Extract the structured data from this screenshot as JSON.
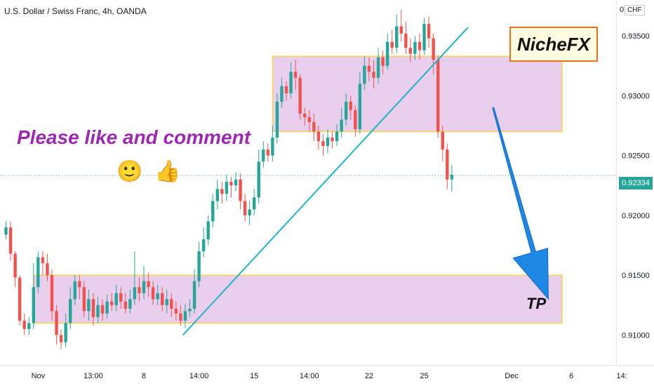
{
  "header": {
    "symbol_title": "U.S. Dollar / Swiss Franc, 4h, OANDA",
    "currency_badge": "CHF"
  },
  "annotations": {
    "brand_label": "NicheFX",
    "promo_text": "Please like and comment",
    "emoji_smile": "🙂",
    "emoji_thumb": "👍",
    "target_label": "TP"
  },
  "current_price": {
    "label": "0.92334",
    "value": 0.92334
  },
  "colors": {
    "bull": "#26a69a",
    "bear": "#ef5350",
    "zone_fill": "#e1bee7",
    "zone_border": "#f9d54a",
    "trendline": "#1fb3c8",
    "arrow": "#1e88e5",
    "price_line": "#26a69a"
  },
  "chart_data": {
    "type": "candlestick",
    "title": "U.S. Dollar / Swiss Franc, 4h, OANDA",
    "y_axis": {
      "ticks": [
        "0.93500",
        "0.93000",
        "0.92500",
        "0.92000",
        "0.91500",
        "0.91000"
      ],
      "tick_values": [
        0.935,
        0.93,
        0.925,
        0.92,
        0.915,
        0.91
      ],
      "range": [
        0.9075,
        0.938
      ]
    },
    "x_axis": {
      "ticks": [
        "Nov",
        "13:00",
        "8",
        "14:00",
        "15",
        "14:00",
        "22",
        "25",
        "Dec",
        "6",
        "14:"
      ],
      "tick_index": [
        7,
        19,
        30,
        42,
        54,
        66,
        79,
        91,
        110,
        123,
        134
      ],
      "range": [
        0,
        136
      ]
    },
    "zones": [
      {
        "name": "resistance",
        "y_top": 0.9333,
        "y_bottom": 0.927,
        "x_from": 58,
        "x_to": 121
      },
      {
        "name": "support",
        "y_top": 0.915,
        "y_bottom": 0.911,
        "x_from": 6,
        "x_to": 121
      }
    ],
    "trendline": {
      "from": {
        "x": 38.5,
        "y": 0.91
      },
      "to": {
        "x": 100.5,
        "y": 0.9357
      }
    },
    "arrow": {
      "from": {
        "x": 106,
        "y": 0.929
      },
      "to": {
        "x": 118,
        "y": 0.913
      }
    },
    "candles": [
      [
        0.9184,
        0.919,
        0.9195,
        0.918
      ],
      [
        0.919,
        0.9168,
        0.9195,
        0.9162
      ],
      [
        0.9168,
        0.9148,
        0.917,
        0.914
      ],
      [
        0.9148,
        0.9112,
        0.915,
        0.9108
      ],
      [
        0.9112,
        0.9105,
        0.9118,
        0.91
      ],
      [
        0.9105,
        0.911,
        0.9115,
        0.91
      ],
      [
        0.911,
        0.914,
        0.916,
        0.9105
      ],
      [
        0.914,
        0.9165,
        0.917,
        0.9135
      ],
      [
        0.9165,
        0.916,
        0.917,
        0.915
      ],
      [
        0.916,
        0.915,
        0.9168,
        0.9145
      ],
      [
        0.915,
        0.912,
        0.9155,
        0.9112
      ],
      [
        0.912,
        0.91,
        0.9125,
        0.9092
      ],
      [
        0.91,
        0.9094,
        0.9105,
        0.9088
      ],
      [
        0.9094,
        0.911,
        0.9118,
        0.909
      ],
      [
        0.911,
        0.913,
        0.914,
        0.9105
      ],
      [
        0.913,
        0.9145,
        0.915,
        0.9125
      ],
      [
        0.9145,
        0.914,
        0.915,
        0.913
      ],
      [
        0.914,
        0.912,
        0.9145,
        0.9115
      ],
      [
        0.912,
        0.913,
        0.9138,
        0.9112
      ],
      [
        0.913,
        0.9115,
        0.9135,
        0.9108
      ],
      [
        0.9115,
        0.9125,
        0.9132,
        0.911
      ],
      [
        0.9125,
        0.9118,
        0.913,
        0.9112
      ],
      [
        0.9118,
        0.9128,
        0.9134,
        0.9114
      ],
      [
        0.9128,
        0.9125,
        0.9135,
        0.912
      ],
      [
        0.9125,
        0.9135,
        0.9142,
        0.912
      ],
      [
        0.9135,
        0.9128,
        0.914,
        0.9122
      ],
      [
        0.9128,
        0.9122,
        0.9135,
        0.9118
      ],
      [
        0.9122,
        0.913,
        0.9138,
        0.9118
      ],
      [
        0.913,
        0.914,
        0.917,
        0.9125
      ],
      [
        0.914,
        0.9135,
        0.9148,
        0.9128
      ],
      [
        0.9135,
        0.9145,
        0.9158,
        0.913
      ],
      [
        0.9145,
        0.914,
        0.9152,
        0.9132
      ],
      [
        0.914,
        0.913,
        0.9145,
        0.9125
      ],
      [
        0.913,
        0.9135,
        0.9142,
        0.9125
      ],
      [
        0.9135,
        0.9125,
        0.914,
        0.912
      ],
      [
        0.9125,
        0.913,
        0.9138,
        0.9118
      ],
      [
        0.913,
        0.9122,
        0.9135,
        0.9115
      ],
      [
        0.9122,
        0.9118,
        0.9128,
        0.9112
      ],
      [
        0.9118,
        0.9112,
        0.9125,
        0.9108
      ],
      [
        0.9112,
        0.912,
        0.9126,
        0.9106
      ],
      [
        0.912,
        0.9122,
        0.913,
        0.9115
      ],
      [
        0.9122,
        0.9145,
        0.9155,
        0.9118
      ],
      [
        0.9145,
        0.917,
        0.9178,
        0.914
      ],
      [
        0.917,
        0.918,
        0.919,
        0.9165
      ],
      [
        0.918,
        0.9195,
        0.92,
        0.9175
      ],
      [
        0.9195,
        0.9212,
        0.9218,
        0.919
      ],
      [
        0.9212,
        0.9222,
        0.923,
        0.9205
      ],
      [
        0.9222,
        0.9218,
        0.9228,
        0.921
      ],
      [
        0.9218,
        0.9228,
        0.9234,
        0.9212
      ],
      [
        0.9228,
        0.9225,
        0.9232,
        0.9215
      ],
      [
        0.9225,
        0.923,
        0.9236,
        0.922
      ],
      [
        0.923,
        0.9212,
        0.9235,
        0.9205
      ],
      [
        0.9212,
        0.92,
        0.9218,
        0.9195
      ],
      [
        0.92,
        0.9205,
        0.9212,
        0.9192
      ],
      [
        0.9205,
        0.9215,
        0.9222,
        0.92
      ],
      [
        0.9215,
        0.9245,
        0.9255,
        0.921
      ],
      [
        0.9245,
        0.9255,
        0.9262,
        0.924
      ],
      [
        0.9255,
        0.925,
        0.926,
        0.9245
      ],
      [
        0.925,
        0.9265,
        0.9275,
        0.9245
      ],
      [
        0.9265,
        0.9295,
        0.9302,
        0.926
      ],
      [
        0.9295,
        0.9308,
        0.9315,
        0.929
      ],
      [
        0.9308,
        0.9302,
        0.9312,
        0.9296
      ],
      [
        0.9302,
        0.932,
        0.9328,
        0.9298
      ],
      [
        0.932,
        0.9315,
        0.933,
        0.9305
      ],
      [
        0.9315,
        0.9285,
        0.9318,
        0.928
      ],
      [
        0.9285,
        0.9282,
        0.929,
        0.9275
      ],
      [
        0.9282,
        0.9278,
        0.9288,
        0.927
      ],
      [
        0.9278,
        0.927,
        0.9285,
        0.9262
      ],
      [
        0.927,
        0.9262,
        0.9275,
        0.9255
      ],
      [
        0.9262,
        0.9258,
        0.9268,
        0.925
      ],
      [
        0.9258,
        0.9265,
        0.9272,
        0.9252
      ],
      [
        0.9265,
        0.9262,
        0.927,
        0.9256
      ],
      [
        0.9262,
        0.927,
        0.9276,
        0.9258
      ],
      [
        0.927,
        0.928,
        0.929,
        0.9265
      ],
      [
        0.928,
        0.9295,
        0.9302,
        0.9275
      ],
      [
        0.9295,
        0.9288,
        0.93,
        0.928
      ],
      [
        0.9288,
        0.9272,
        0.9292,
        0.9266
      ],
      [
        0.9272,
        0.931,
        0.932,
        0.9268
      ],
      [
        0.931,
        0.9325,
        0.9333,
        0.9305
      ],
      [
        0.9325,
        0.932,
        0.9332,
        0.9312
      ],
      [
        0.932,
        0.9315,
        0.933,
        0.9306
      ],
      [
        0.9315,
        0.9332,
        0.934,
        0.931
      ],
      [
        0.9332,
        0.9325,
        0.9338,
        0.9318
      ],
      [
        0.9325,
        0.9345,
        0.9352,
        0.9322
      ],
      [
        0.9345,
        0.934,
        0.9355,
        0.9335
      ],
      [
        0.934,
        0.9358,
        0.9368,
        0.9336
      ],
      [
        0.9358,
        0.9352,
        0.9372,
        0.9345
      ],
      [
        0.9352,
        0.934,
        0.9362,
        0.9335
      ],
      [
        0.934,
        0.9335,
        0.9348,
        0.9328
      ],
      [
        0.9335,
        0.9345,
        0.935,
        0.933
      ],
      [
        0.9345,
        0.9338,
        0.9352,
        0.933
      ],
      [
        0.9338,
        0.936,
        0.9365,
        0.9334
      ],
      [
        0.936,
        0.9348,
        0.9366,
        0.934
      ],
      [
        0.9348,
        0.933,
        0.9352,
        0.9318
      ],
      [
        0.933,
        0.927,
        0.9334,
        0.9265
      ],
      [
        0.927,
        0.9255,
        0.9275,
        0.9245
      ],
      [
        0.9255,
        0.923,
        0.926,
        0.9222
      ],
      [
        0.923,
        0.9234,
        0.9242,
        0.922
      ]
    ]
  }
}
